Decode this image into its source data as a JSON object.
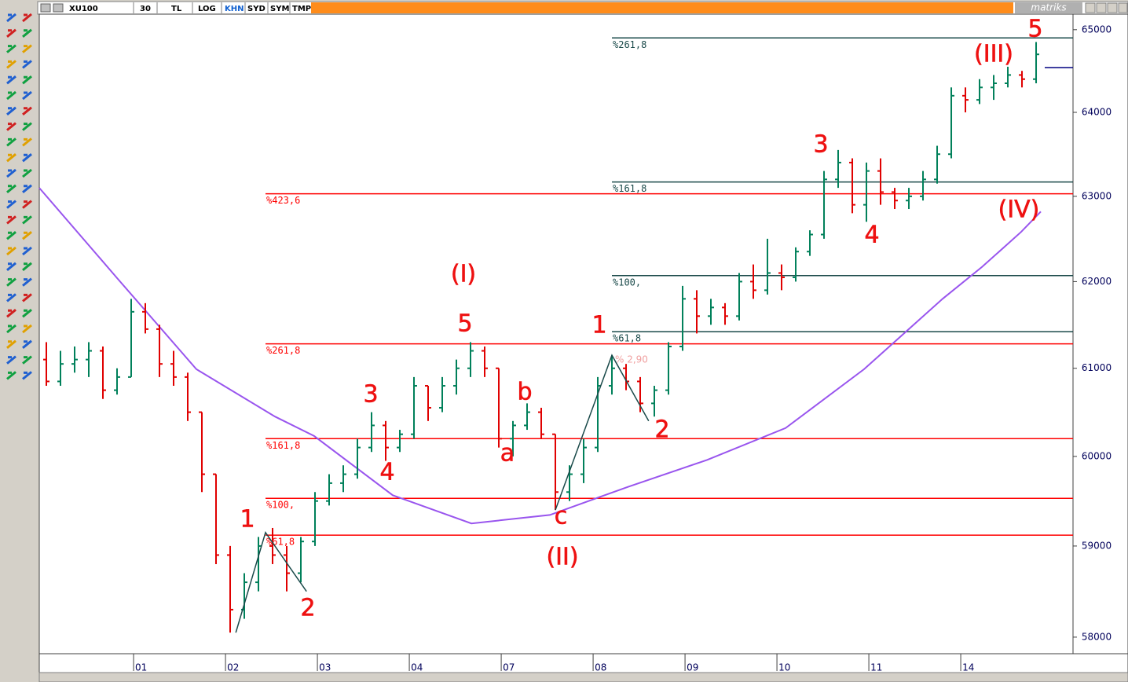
{
  "toolbar": {
    "symbol": "XU100",
    "period": "30",
    "buttons": [
      "TL",
      "LOG",
      "KHN",
      "SYD",
      "SYM",
      "TMP"
    ],
    "brand": "matriks"
  },
  "chart_data": {
    "type": "ohlc",
    "log": true,
    "xlim": [
      0,
      73.11
    ],
    "ylim": [
      57820,
      65190
    ],
    "yticks": [
      58000,
      59000,
      60000,
      61000,
      62000,
      63000,
      64000,
      65000
    ],
    "xticks": [
      {
        "value": 6.67,
        "label": "01"
      },
      {
        "value": 13.17,
        "label": "02"
      },
      {
        "value": 19.67,
        "label": "03"
      },
      {
        "value": 26.17,
        "label": "04"
      },
      {
        "value": 32.67,
        "label": "07"
      },
      {
        "value": 39.17,
        "label": "08"
      },
      {
        "value": 45.67,
        "label": "09"
      },
      {
        "value": 52.17,
        "label": "10"
      },
      {
        "value": 58.67,
        "label": "11"
      },
      {
        "value": 65.17,
        "label": "14"
      }
    ],
    "up_color": "#00805a",
    "down_color": "#e00000",
    "x": [
      0.5,
      1.5,
      2.5,
      3.5,
      4.5,
      5.5,
      6.5,
      7.5,
      8.5,
      9.5,
      10.5,
      11.5,
      12.5,
      13.5,
      14.5,
      15.5,
      16.5,
      17.5,
      18.5,
      19.5,
      20.5,
      21.5,
      22.5,
      23.5,
      24.5,
      25.5,
      26.5,
      27.5,
      28.5,
      29.5,
      30.5,
      31.5,
      32.5,
      33.5,
      34.5,
      35.5,
      36.5,
      37.5,
      38.5,
      39.5,
      40.5,
      41.5,
      42.5,
      43.5,
      44.5,
      45.5,
      46.5,
      47.5,
      48.5,
      49.5,
      50.5,
      51.5,
      52.5,
      53.5,
      54.5,
      55.5,
      56.5,
      57.5,
      58.5,
      59.5,
      60.5,
      61.5,
      62.5,
      63.5,
      64.5,
      65.5,
      66.5,
      67.5,
      68.5,
      69.5,
      70.5
    ],
    "open": [
      61100,
      60850,
      61050,
      61100,
      61200,
      60750,
      60900,
      61650,
      61450,
      61050,
      60900,
      60500,
      59800,
      58900,
      58300,
      58600,
      59000,
      58900,
      58700,
      59050,
      59500,
      59700,
      59800,
      60100,
      60350,
      60100,
      60250,
      60800,
      60550,
      60800,
      61000,
      61200,
      61000,
      60200,
      60350,
      60500,
      60250,
      59600,
      59800,
      60100,
      60800,
      61000,
      60850,
      60600,
      60750,
      61250,
      61800,
      61600,
      61700,
      61600,
      62000,
      61900,
      62100,
      62050,
      62350,
      62550,
      63200,
      63400,
      62900,
      63300,
      63050,
      62950,
      63000,
      63200,
      63500,
      64200,
      64150,
      64300,
      64350,
      64450,
      64400
    ],
    "high": [
      61300,
      61200,
      61250,
      61300,
      61250,
      61000,
      61800,
      61750,
      61500,
      61200,
      60950,
      60500,
      59800,
      59000,
      58700,
      59100,
      59200,
      59000,
      59100,
      59600,
      59800,
      59900,
      60200,
      60500,
      60400,
      60300,
      60900,
      60800,
      60900,
      61100,
      61300,
      61250,
      61000,
      60400,
      60600,
      60550,
      60250,
      59900,
      60200,
      60900,
      61150,
      61050,
      60900,
      60800,
      61300,
      61950,
      61900,
      61800,
      61750,
      62100,
      62200,
      62500,
      62200,
      62400,
      62600,
      63300,
      63550,
      63450,
      63400,
      63450,
      63100,
      63100,
      63300,
      63600,
      64300,
      64300,
      64400,
      64450,
      64550,
      64500,
      64850
    ],
    "low": [
      60800,
      60800,
      60950,
      60900,
      60650,
      60700,
      60900,
      61400,
      60900,
      60800,
      60400,
      59600,
      58800,
      58050,
      58200,
      58500,
      58800,
      58500,
      58600,
      59000,
      59450,
      59600,
      59750,
      60050,
      59950,
      60050,
      60200,
      60400,
      60500,
      60700,
      60900,
      60900,
      60100,
      60000,
      60300,
      60200,
      59400,
      59500,
      59700,
      60050,
      60700,
      60750,
      60500,
      60450,
      60700,
      61200,
      61400,
      61500,
      61500,
      61550,
      61800,
      61850,
      61900,
      62000,
      62300,
      62500,
      63100,
      62800,
      62700,
      62900,
      62850,
      62850,
      62950,
      63150,
      63450,
      64000,
      64100,
      64150,
      64300,
      64300,
      64350
    ],
    "close": [
      60850,
      61050,
      61100,
      61200,
      60750,
      60900,
      61650,
      61450,
      61050,
      60900,
      60500,
      59800,
      58900,
      58300,
      58600,
      59000,
      58900,
      58700,
      59050,
      59500,
      59700,
      59800,
      60100,
      60350,
      60100,
      60250,
      60800,
      60550,
      60800,
      61000,
      61200,
      61000,
      60200,
      60350,
      60500,
      60250,
      59600,
      59800,
      60100,
      60800,
      61000,
      60850,
      60600,
      60750,
      61250,
      61800,
      61600,
      61700,
      61600,
      62000,
      61900,
      62100,
      62050,
      62350,
      62550,
      63200,
      63400,
      62900,
      63300,
      63050,
      62950,
      63000,
      63200,
      63500,
      64200,
      64150,
      64300,
      64350,
      64450,
      64400,
      64700
    ],
    "average": {
      "color": "#9955ee",
      "x": [
        0,
        5.56,
        11.11,
        16.67,
        19.44,
        25,
        30.56,
        36.11,
        41.67,
        47.22,
        52.78,
        58.33,
        63.89,
        66.67,
        69.44,
        70.83
      ],
      "values": [
        63100,
        62030,
        60990,
        60450,
        60230,
        59565,
        59250,
        59345,
        59660,
        59960,
        60320,
        60990,
        61800,
        62170,
        62580,
        62820
      ]
    },
    "fib_levels": [
      {
        "label": "%423,6",
        "value": 63030,
        "start": 16,
        "color": "#ff0000"
      },
      {
        "label": "%261,8",
        "value": 61280,
        "start": 16,
        "color": "#ff0000"
      },
      {
        "label": "%161,8",
        "value": 60200,
        "start": 16,
        "color": "#ff0000"
      },
      {
        "label": "%100,",
        "value": 59530,
        "start": 16,
        "color": "#ff0000"
      },
      {
        "label": "%61,8",
        "value": 59120,
        "start": 16,
        "color": "#ff0000"
      },
      {
        "label": "%261,8",
        "value": 64900,
        "start": 40.5,
        "color": "#1a4a4a"
      },
      {
        "label": "%161,8",
        "value": 63170,
        "start": 40.5,
        "color": "#1a4a4a"
      },
      {
        "label": "%100,",
        "value": 62070,
        "start": 40.5,
        "color": "#1a4a4a"
      },
      {
        "label": "%61,8",
        "value": 61420,
        "start": 40.5,
        "color": "#1a4a4a"
      }
    ],
    "trend_lines": [
      {
        "x": [
          13.9,
          16,
          18.9
        ],
        "values": [
          58050,
          59150,
          58500
        ]
      },
      {
        "x": [
          36.5,
          40.5,
          43.1
        ],
        "values": [
          59400,
          61150,
          60400
        ]
      }
    ],
    "last_marker": 64540,
    "retracement_label": "% 2,90"
  },
  "annotations": [
    "1",
    "2",
    "3",
    "4",
    "5",
    "(I)",
    "a",
    "b",
    "c",
    "(II)",
    "1",
    "2",
    "3",
    "4",
    "(III)",
    "5",
    "(IV)"
  ]
}
